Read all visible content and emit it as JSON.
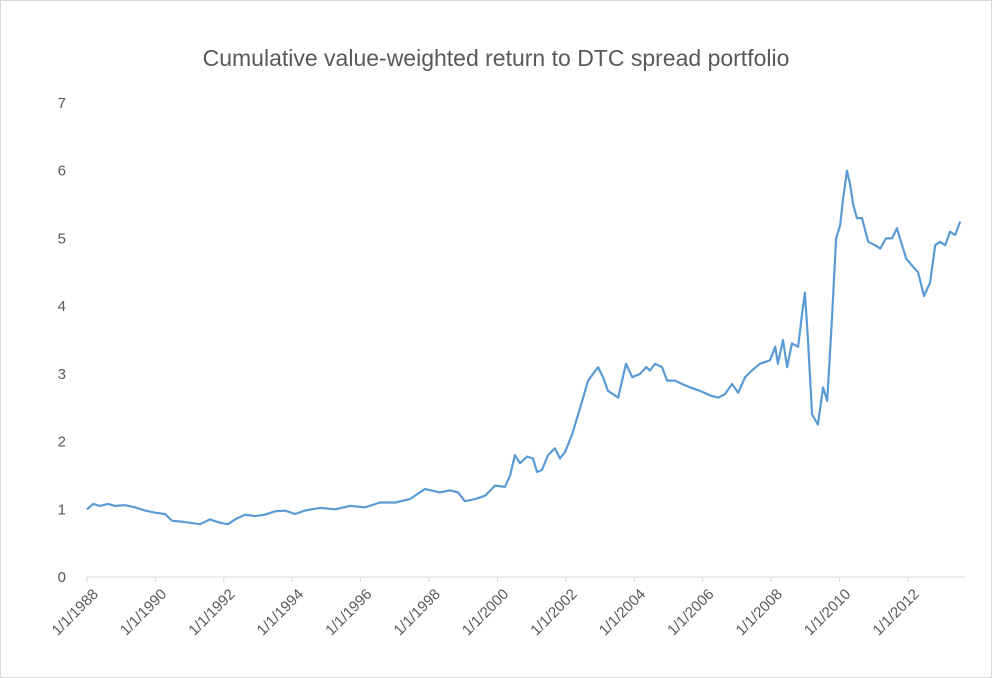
{
  "chart_data": {
    "type": "line",
    "title": "Cumulative value-weighted return to DTC spread portfolio",
    "color": "#5b9bd5",
    "xlim": [
      1988,
      2013.67
    ],
    "xticks": [
      {
        "value": 1988,
        "label": "1/1/1988"
      },
      {
        "value": 1990,
        "label": "1/1/1990"
      },
      {
        "value": 1992,
        "label": "1/1/1992"
      },
      {
        "value": 1994,
        "label": "1/1/1994"
      },
      {
        "value": 1996,
        "label": "1/1/1996"
      },
      {
        "value": 1998,
        "label": "1/1/1998"
      },
      {
        "value": 2000,
        "label": "1/1/2000"
      },
      {
        "value": 2002,
        "label": "1/1/2002"
      },
      {
        "value": 2004,
        "label": "1/1/2004"
      },
      {
        "value": 2006,
        "label": "1/1/2006"
      },
      {
        "value": 2008,
        "label": "1/1/2008"
      },
      {
        "value": 2010,
        "label": "1/1/2010"
      },
      {
        "value": 2012,
        "label": "1/1/2012"
      }
    ],
    "ylim": [
      0,
      7
    ],
    "yticks": [
      0,
      1,
      2,
      3,
      4,
      5,
      6,
      7
    ],
    "grid": false,
    "x": [
      1988.0,
      1988.18,
      1988.38,
      1988.61,
      1988.82,
      1989.11,
      1989.4,
      1989.7,
      1989.99,
      1990.28,
      1990.49,
      1990.72,
      1991.01,
      1991.3,
      1991.6,
      1991.89,
      1992.12,
      1992.33,
      1992.62,
      1992.91,
      1993.2,
      1993.5,
      1993.79,
      1994.08,
      1994.37,
      1994.81,
      1995.25,
      1995.69,
      1996.13,
      1996.57,
      1997.01,
      1997.44,
      1997.88,
      1998.32,
      1998.61,
      1998.85,
      1999.05,
      1999.35,
      1999.64,
      1999.93,
      2000.22,
      2000.37,
      2000.51,
      2000.66,
      2000.87,
      2001.04,
      2001.16,
      2001.3,
      2001.48,
      2001.68,
      2001.83,
      2001.98,
      2002.18,
      2002.42,
      2002.65,
      2002.94,
      2003.09,
      2003.23,
      2003.53,
      2003.76,
      2003.94,
      2004.17,
      2004.35,
      2004.46,
      2004.61,
      2004.81,
      2004.96,
      2005.19,
      2005.4,
      2005.63,
      2005.92,
      2006.22,
      2006.45,
      2006.65,
      2006.86,
      2007.04,
      2007.24,
      2007.44,
      2007.68,
      2007.97,
      2008.12,
      2008.2,
      2008.35,
      2008.47,
      2008.61,
      2008.79,
      2008.91,
      2008.99,
      2009.08,
      2009.2,
      2009.37,
      2009.52,
      2009.64,
      2009.78,
      2009.9,
      2010.02,
      2010.11,
      2010.22,
      2010.31,
      2010.4,
      2010.51,
      2010.66,
      2010.84,
      2011.04,
      2011.19,
      2011.36,
      2011.54,
      2011.68,
      2011.83,
      2011.95,
      2012.12,
      2012.3,
      2012.47,
      2012.65,
      2012.8,
      2012.94,
      2013.09,
      2013.23,
      2013.38,
      2013.53
    ],
    "values": [
      1.0,
      1.08,
      1.05,
      1.08,
      1.05,
      1.06,
      1.03,
      0.98,
      0.95,
      0.93,
      0.83,
      0.82,
      0.8,
      0.78,
      0.85,
      0.8,
      0.78,
      0.85,
      0.92,
      0.9,
      0.92,
      0.97,
      0.98,
      0.93,
      0.98,
      1.02,
      1.0,
      1.05,
      1.03,
      1.1,
      1.1,
      1.15,
      1.3,
      1.25,
      1.28,
      1.25,
      1.12,
      1.15,
      1.2,
      1.35,
      1.33,
      1.5,
      1.8,
      1.68,
      1.78,
      1.75,
      1.55,
      1.58,
      1.8,
      1.9,
      1.75,
      1.85,
      2.1,
      2.5,
      2.9,
      3.1,
      2.95,
      2.75,
      2.65,
      3.15,
      2.95,
      3.0,
      3.1,
      3.05,
      3.15,
      3.1,
      2.9,
      2.9,
      2.85,
      2.8,
      2.75,
      2.68,
      2.65,
      2.7,
      2.85,
      2.72,
      2.95,
      3.05,
      3.15,
      3.2,
      3.4,
      3.15,
      3.5,
      3.1,
      3.45,
      3.4,
      3.9,
      4.2,
      3.5,
      2.4,
      2.25,
      2.8,
      2.6,
      3.8,
      5.0,
      5.2,
      5.6,
      6.0,
      5.8,
      5.5,
      5.3,
      5.3,
      4.95,
      4.9,
      4.85,
      5.0,
      5.0,
      5.15,
      4.9,
      4.7,
      4.6,
      4.5,
      4.15,
      4.35,
      4.9,
      4.95,
      4.9,
      5.1,
      5.05,
      5.25
    ]
  }
}
